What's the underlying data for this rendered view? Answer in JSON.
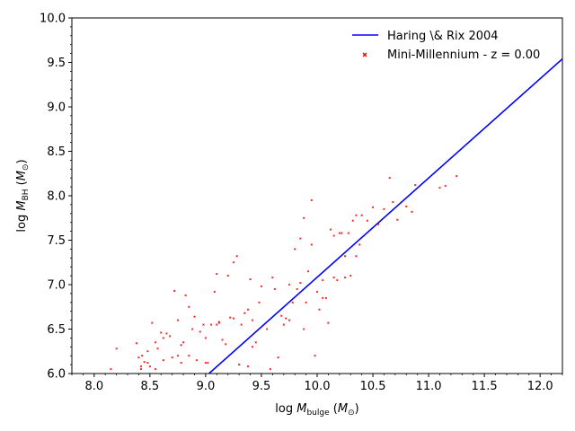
{
  "chart_data": {
    "type": "scatter",
    "xlim": [
      7.8,
      12.2
    ],
    "ylim": [
      6.0,
      10.0
    ],
    "xlabel": "log M_bulge (M⊙)",
    "ylabel": "log M_BH (M⊙)",
    "x_ticks": [
      8.0,
      8.5,
      9.0,
      9.5,
      10.0,
      10.5,
      11.0,
      11.5,
      12.0
    ],
    "y_ticks": [
      6.0,
      6.5,
      7.0,
      7.5,
      8.0,
      8.5,
      9.0,
      9.5,
      10.0
    ],
    "x_tick_labels": [
      "8.0",
      "8.5",
      "9.0",
      "9.5",
      "10.0",
      "10.5",
      "11.0",
      "11.5",
      "12.0"
    ],
    "y_tick_labels": [
      "6.0",
      "6.5",
      "7.0",
      "7.5",
      "8.0",
      "8.5",
      "9.0",
      "9.5",
      "10.0"
    ],
    "legend_position": "top-right",
    "series": [
      {
        "name": "Haring \\& Rix 2004",
        "kind": "line",
        "color": "#0000ff",
        "x": [
          9.03,
          12.2
        ],
        "y": [
          6.0,
          9.54
        ]
      },
      {
        "name": "Mini-Millennium - z = 0.00",
        "kind": "scatter",
        "color": "#ff0000",
        "x": [
          8.15,
          8.2,
          8.38,
          8.4,
          8.42,
          8.43,
          8.45,
          8.48,
          8.5,
          8.52,
          8.55,
          8.57,
          8.6,
          8.62,
          8.65,
          8.68,
          8.7,
          8.72,
          8.75,
          8.78,
          8.8,
          8.82,
          8.85,
          8.88,
          8.9,
          8.92,
          8.95,
          8.98,
          9.0,
          9.02,
          9.05,
          9.08,
          9.1,
          9.12,
          9.15,
          9.18,
          9.2,
          9.22,
          9.25,
          9.28,
          9.3,
          9.32,
          9.35,
          9.38,
          9.4,
          9.42,
          9.45,
          9.48,
          9.5,
          9.55,
          9.6,
          9.62,
          9.65,
          9.68,
          9.7,
          9.72,
          9.75,
          9.78,
          9.8,
          9.82,
          9.85,
          9.88,
          9.9,
          9.92,
          9.95,
          9.98,
          10.0,
          10.02,
          10.05,
          10.08,
          10.1,
          10.12,
          10.15,
          10.18,
          10.2,
          10.22,
          10.25,
          10.28,
          10.3,
          10.32,
          10.35,
          10.38,
          10.4,
          10.45,
          10.5,
          10.55,
          10.6,
          10.65,
          10.68,
          10.72,
          10.8,
          10.85,
          10.88,
          11.1,
          11.15,
          11.25,
          8.48,
          8.55,
          8.62,
          8.78,
          8.85,
          9.0,
          9.12,
          9.25,
          9.38,
          9.42,
          9.58,
          9.75,
          9.88,
          9.95,
          10.05,
          10.15,
          10.25,
          10.35,
          8.42,
          8.75,
          9.1,
          9.85
        ],
        "y": [
          6.05,
          6.28,
          6.34,
          6.18,
          6.05,
          6.2,
          6.13,
          6.25,
          6.08,
          6.57,
          6.35,
          6.28,
          6.46,
          6.15,
          6.45,
          6.42,
          6.18,
          6.93,
          6.6,
          6.32,
          6.35,
          6.88,
          6.75,
          6.5,
          6.64,
          6.15,
          6.47,
          6.55,
          6.4,
          6.12,
          6.55,
          6.92,
          7.12,
          6.57,
          6.38,
          6.33,
          7.1,
          6.63,
          6.62,
          7.32,
          6.1,
          6.55,
          6.68,
          6.72,
          7.06,
          6.3,
          6.35,
          6.8,
          6.98,
          6.5,
          7.08,
          6.95,
          6.18,
          6.65,
          6.55,
          6.62,
          7.0,
          6.8,
          7.4,
          6.95,
          7.52,
          6.5,
          6.8,
          7.15,
          7.45,
          6.2,
          6.92,
          6.72,
          7.05,
          6.85,
          6.57,
          7.62,
          7.55,
          7.05,
          7.58,
          7.58,
          7.32,
          7.58,
          7.1,
          7.72,
          7.32,
          7.45,
          7.78,
          7.72,
          7.87,
          7.68,
          7.85,
          8.2,
          7.93,
          7.73,
          7.88,
          7.82,
          8.12,
          8.09,
          8.11,
          8.22,
          6.12,
          6.05,
          6.4,
          6.12,
          6.2,
          6.12,
          6.58,
          7.25,
          6.08,
          6.6,
          6.05,
          6.6,
          7.75,
          7.95,
          6.85,
          7.08,
          7.08,
          7.78,
          6.08,
          6.2,
          6.55,
          7.02
        ]
      }
    ]
  }
}
